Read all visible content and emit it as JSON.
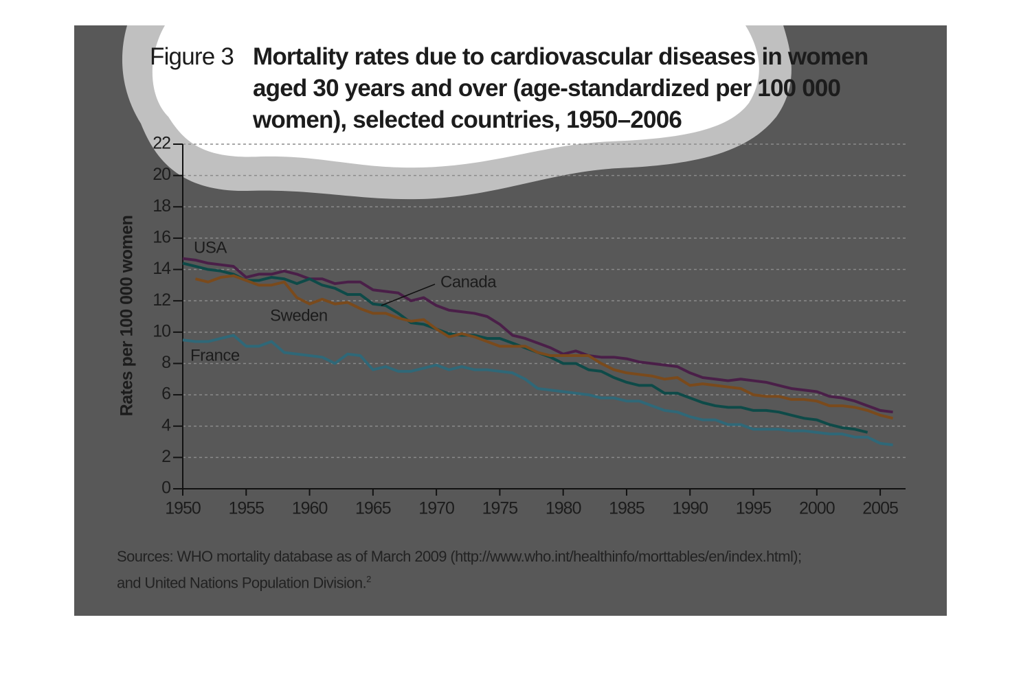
{
  "chart_data": {
    "type": "line",
    "figure_label": "Figure 3",
    "title": "Mortality rates due to cardiovascular diseases in women aged 30 years and over (age-standardized per 100 000 women), selected countries, 1950–2006",
    "y_label": "Rates per 100 000 women",
    "source": [
      "Sources: WHO mortality database as of March 2009 (http://www.who.int/healthinfo/morttables/en/index.html);",
      "and United Nations Population Division."
    ],
    "source_ref": "2",
    "x": [
      1950,
      1951,
      1952,
      1953,
      1954,
      1955,
      1956,
      1957,
      1958,
      1959,
      1960,
      1961,
      1962,
      1963,
      1964,
      1965,
      1966,
      1967,
      1968,
      1969,
      1970,
      1971,
      1972,
      1973,
      1974,
      1975,
      1976,
      1977,
      1978,
      1979,
      1980,
      1981,
      1982,
      1983,
      1984,
      1985,
      1986,
      1987,
      1988,
      1989,
      1990,
      1991,
      1992,
      1993,
      1994,
      1995,
      1996,
      1997,
      1998,
      1999,
      2000,
      2001,
      2002,
      2003,
      2004,
      2005,
      2006
    ],
    "series": [
      {
        "name": "USA",
        "color": "#4a1f48",
        "values": [
          14.7,
          14.6,
          14.4,
          14.3,
          14.2,
          13.5,
          13.7,
          13.7,
          13.9,
          13.7,
          13.4,
          13.4,
          13.1,
          13.2,
          13.2,
          12.7,
          12.6,
          12.5,
          12.0,
          12.2,
          11.7,
          11.4,
          11.3,
          11.2,
          11.0,
          10.5,
          9.8,
          9.6,
          9.3,
          9.0,
          8.6,
          8.8,
          8.5,
          8.4,
          8.4,
          8.3,
          8.1,
          8.0,
          7.9,
          7.8,
          7.4,
          7.1,
          7.0,
          6.9,
          7.0,
          6.9,
          6.8,
          6.6,
          6.4,
          6.3,
          6.2,
          5.9,
          5.8,
          5.6,
          5.3,
          5.0,
          4.9
        ]
      },
      {
        "name": "Canada",
        "color": "#0e4a48",
        "values": [
          14.4,
          14.2,
          14.0,
          13.9,
          13.7,
          13.3,
          13.3,
          13.5,
          13.4,
          13.1,
          13.4,
          13.0,
          12.8,
          12.4,
          12.4,
          11.8,
          11.7,
          11.2,
          10.6,
          10.5,
          10.2,
          9.9,
          9.8,
          9.8,
          9.6,
          9.6,
          9.3,
          9.0,
          8.7,
          8.4,
          8.0,
          8.0,
          7.6,
          7.5,
          7.1,
          6.8,
          6.6,
          6.6,
          6.1,
          6.1,
          5.8,
          5.5,
          5.3,
          5.2,
          5.2,
          5.0,
          5.0,
          4.9,
          4.7,
          4.5,
          4.4,
          4.1,
          3.9,
          3.8,
          3.6,
          null,
          null
        ]
      },
      {
        "name": "Sweden",
        "color": "#7a4a1c",
        "values": [
          null,
          13.4,
          13.2,
          13.5,
          13.6,
          13.3,
          13.0,
          13.0,
          13.2,
          12.2,
          11.8,
          12.1,
          11.8,
          11.9,
          11.5,
          11.2,
          11.2,
          10.9,
          10.7,
          10.8,
          10.2,
          9.7,
          9.9,
          9.7,
          9.4,
          9.1,
          9.1,
          9.1,
          8.7,
          8.5,
          8.5,
          8.5,
          8.5,
          8.0,
          7.6,
          7.4,
          7.3,
          7.2,
          7.0,
          7.1,
          6.6,
          6.7,
          6.6,
          6.5,
          6.4,
          6.0,
          5.9,
          5.9,
          5.7,
          5.7,
          5.6,
          5.3,
          5.3,
          5.2,
          5.0,
          4.7,
          4.5
        ]
      },
      {
        "name": "France",
        "color": "#2f6878",
        "values": [
          9.5,
          9.4,
          9.4,
          9.6,
          9.8,
          9.1,
          9.1,
          9.4,
          8.7,
          8.6,
          8.5,
          8.4,
          8.0,
          8.6,
          8.5,
          7.6,
          7.8,
          7.5,
          7.5,
          7.7,
          7.9,
          7.6,
          7.8,
          7.6,
          7.6,
          7.5,
          7.4,
          7.0,
          6.4,
          6.3,
          6.2,
          6.1,
          6.0,
          5.8,
          5.8,
          5.6,
          5.6,
          5.3,
          5.0,
          4.9,
          4.6,
          4.4,
          4.4,
          4.1,
          4.1,
          3.8,
          3.8,
          3.8,
          3.7,
          3.7,
          3.6,
          3.5,
          3.5,
          3.3,
          3.3,
          2.9,
          2.8
        ]
      }
    ],
    "xlim": [
      1950,
      2007
    ],
    "xticks": [
      1950,
      1955,
      1960,
      1965,
      1970,
      1975,
      1980,
      1985,
      1990,
      1995,
      2000,
      2005
    ],
    "ylim": [
      0,
      22
    ],
    "yticks": [
      0,
      2,
      4,
      6,
      8,
      10,
      12,
      14,
      16,
      18,
      20,
      22
    ],
    "grid": true
  }
}
